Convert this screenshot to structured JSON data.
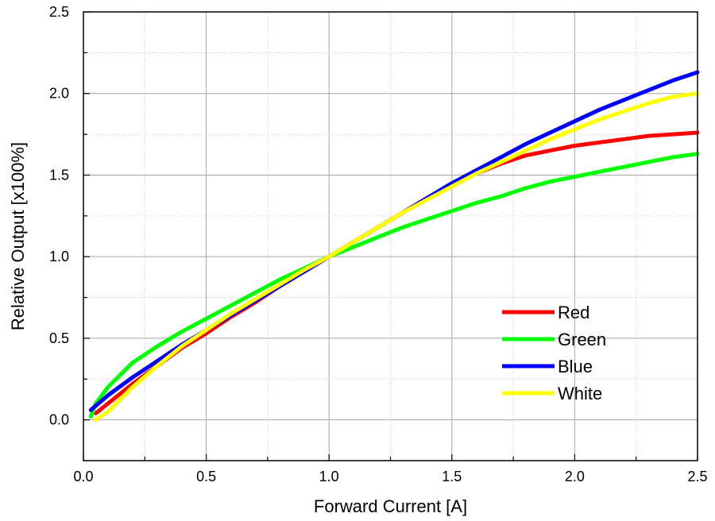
{
  "chart_data": {
    "type": "line",
    "title": "",
    "xlabel": "Forward Current [A]",
    "ylabel": "Relative Output [x100%]",
    "xlim": [
      0.0,
      2.5
    ],
    "ylim": [
      -0.25,
      2.5
    ],
    "x_ticks": [
      "0.0",
      "0.5",
      "1.0",
      "1.5",
      "2.0",
      "2.5"
    ],
    "y_ticks": [
      "0.0",
      "0.5",
      "1.0",
      "1.5",
      "2.0",
      "2.5"
    ],
    "grid": true,
    "legend_position": "lower-right",
    "series": [
      {
        "name": "Red",
        "color": "#ff0000",
        "x": [
          0.05,
          0.1,
          0.2,
          0.3,
          0.4,
          0.5,
          0.6,
          0.7,
          0.8,
          0.9,
          1.0,
          1.1,
          1.2,
          1.3,
          1.4,
          1.5,
          1.6,
          1.7,
          1.8,
          1.9,
          2.0,
          2.1,
          2.2,
          2.3,
          2.4,
          2.5
        ],
        "values": [
          0.04,
          0.1,
          0.22,
          0.33,
          0.44,
          0.53,
          0.63,
          0.72,
          0.82,
          0.91,
          1.0,
          1.09,
          1.18,
          1.27,
          1.36,
          1.44,
          1.51,
          1.57,
          1.62,
          1.65,
          1.68,
          1.7,
          1.72,
          1.74,
          1.75,
          1.76
        ]
      },
      {
        "name": "Green",
        "color": "#00ff00",
        "x": [
          0.03,
          0.05,
          0.1,
          0.2,
          0.3,
          0.4,
          0.5,
          0.6,
          0.7,
          0.8,
          0.9,
          1.0,
          1.1,
          1.2,
          1.3,
          1.4,
          1.5,
          1.6,
          1.7,
          1.8,
          1.9,
          2.0,
          2.1,
          2.2,
          2.3,
          2.4,
          2.5
        ],
        "values": [
          0.02,
          0.1,
          0.2,
          0.35,
          0.45,
          0.54,
          0.62,
          0.7,
          0.78,
          0.86,
          0.93,
          1.0,
          1.06,
          1.12,
          1.18,
          1.23,
          1.28,
          1.33,
          1.37,
          1.42,
          1.46,
          1.49,
          1.52,
          1.55,
          1.58,
          1.61,
          1.63
        ]
      },
      {
        "name": "Blue",
        "color": "#0000ff",
        "x": [
          0.03,
          0.1,
          0.2,
          0.3,
          0.4,
          0.5,
          0.6,
          0.7,
          0.8,
          0.9,
          1.0,
          1.1,
          1.2,
          1.3,
          1.4,
          1.5,
          1.6,
          1.7,
          1.8,
          1.9,
          2.0,
          2.1,
          2.2,
          2.3,
          2.4,
          2.5
        ],
        "values": [
          0.06,
          0.15,
          0.26,
          0.36,
          0.46,
          0.55,
          0.64,
          0.73,
          0.82,
          0.91,
          1.0,
          1.09,
          1.18,
          1.27,
          1.36,
          1.45,
          1.53,
          1.61,
          1.69,
          1.76,
          1.83,
          1.9,
          1.96,
          2.02,
          2.08,
          2.13
        ]
      },
      {
        "name": "White",
        "color": "#ffff00",
        "x": [
          0.05,
          0.1,
          0.2,
          0.3,
          0.4,
          0.5,
          0.6,
          0.7,
          0.8,
          0.9,
          1.0,
          1.1,
          1.2,
          1.3,
          1.4,
          1.5,
          1.6,
          1.7,
          1.8,
          1.9,
          2.0,
          2.1,
          2.2,
          2.3,
          2.4,
          2.5
        ],
        "values": [
          0.0,
          0.05,
          0.2,
          0.33,
          0.45,
          0.55,
          0.65,
          0.74,
          0.83,
          0.92,
          1.0,
          1.09,
          1.18,
          1.27,
          1.35,
          1.43,
          1.51,
          1.58,
          1.65,
          1.72,
          1.78,
          1.84,
          1.89,
          1.94,
          1.98,
          2.0
        ]
      }
    ]
  }
}
